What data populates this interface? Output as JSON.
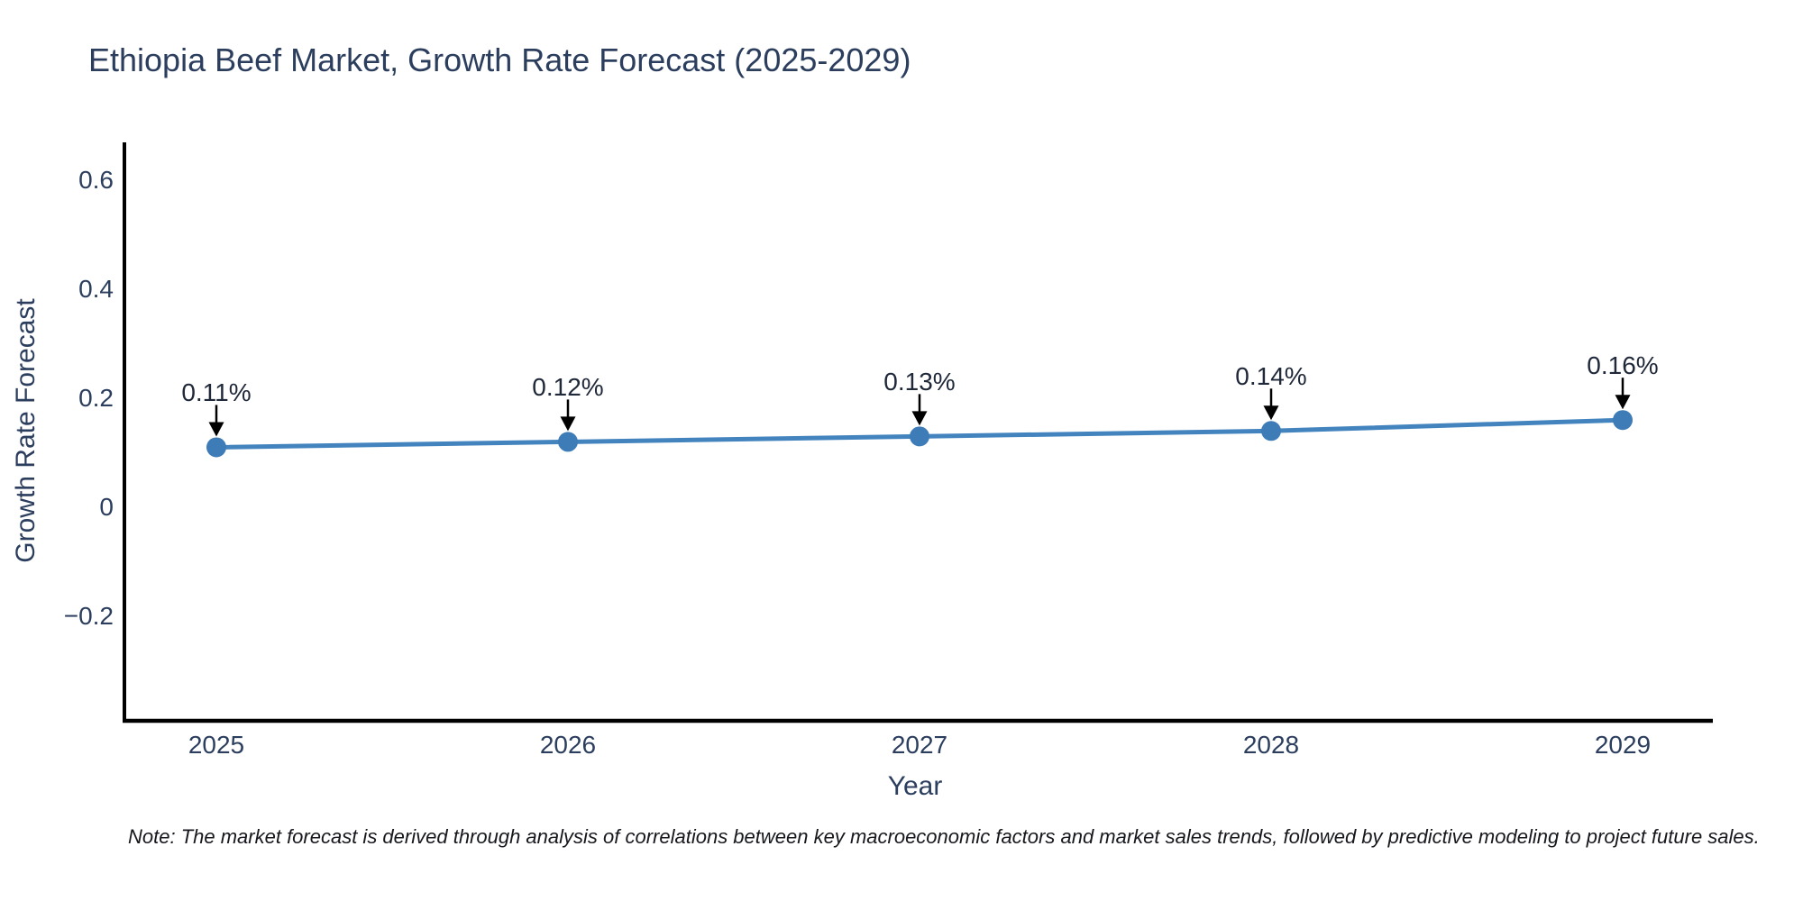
{
  "figure": {
    "note": "Note: The market forecast is derived through analysis of correlations between key macroeconomic factors and market sales trends, followed by predictive modeling to project future sales."
  },
  "chart_data": {
    "type": "line",
    "title": "Ethiopia Beef Market, Growth Rate Forecast (2025-2029)",
    "xlabel": "Year",
    "ylabel": "Growth Rate Forecast",
    "x": [
      2025,
      2026,
      2027,
      2028,
      2029
    ],
    "categories": [
      "2025",
      "2026",
      "2027",
      "2028",
      "2029"
    ],
    "values": [
      0.11,
      0.12,
      0.13,
      0.14,
      0.16
    ],
    "point_labels": [
      "0.11%",
      "0.12%",
      "0.13%",
      "0.14%",
      "0.16%"
    ],
    "yticks": [
      {
        "label": "0.6",
        "value": 0.6
      },
      {
        "label": "0.4",
        "value": 0.4
      },
      {
        "label": "0.2",
        "value": 0.2
      },
      {
        "label": "0",
        "value": 0
      },
      {
        "label": "−0.2",
        "value": -0.2
      }
    ],
    "ylim": [
      -0.39,
      0.67
    ],
    "grid": false,
    "legend": "none",
    "annotation_style": "black-arrow-down-to-point",
    "colors": {
      "line": "#4384bf",
      "marker": "#3e7cb8",
      "axis": "#000000",
      "text": "#2c3e5e",
      "annotation_text": "#20293a"
    }
  }
}
